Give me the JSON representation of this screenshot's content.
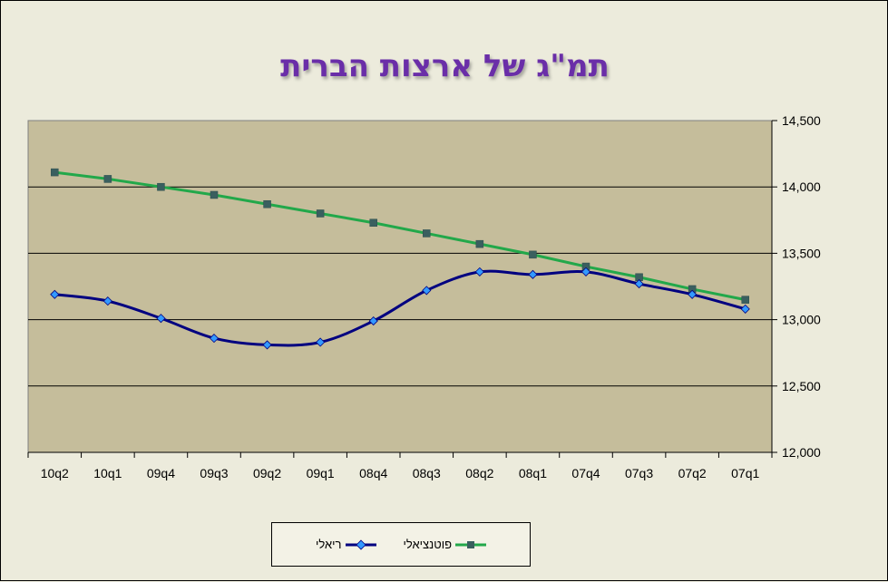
{
  "chart_data": {
    "type": "line",
    "title": "תמ\"ג של ארצות הברית",
    "categories": [
      "10q2",
      "10q1",
      "09q4",
      "09q3",
      "09q2",
      "09q1",
      "08q4",
      "08q3",
      "08q2",
      "08q1",
      "07q4",
      "07q3",
      "07q2",
      "07q1"
    ],
    "series": [
      {
        "name": "ריאלי",
        "color": "#000080",
        "marker": "diamond",
        "marker_color": "#3399ff",
        "values": [
          13190,
          13140,
          13010,
          12860,
          12810,
          12830,
          12990,
          13220,
          13360,
          13340,
          13360,
          13270,
          13190,
          13080
        ]
      },
      {
        "name": "פוטנציאלי",
        "color": "#22a84a",
        "marker": "square",
        "marker_color": "#3a5f5f",
        "values": [
          14110,
          14060,
          14000,
          13940,
          13870,
          13800,
          13730,
          13650,
          13570,
          13490,
          13400,
          13320,
          13230,
          13150
        ]
      }
    ],
    "y_ticks": [
      "12,000",
      "12,500",
      "13,000",
      "13,500",
      "14,000",
      "14,500"
    ],
    "ylim": [
      12000,
      14500
    ],
    "y_axis_side": "right",
    "grid": true,
    "plot_background": "#c5bd9b",
    "legend_position": "bottom"
  }
}
